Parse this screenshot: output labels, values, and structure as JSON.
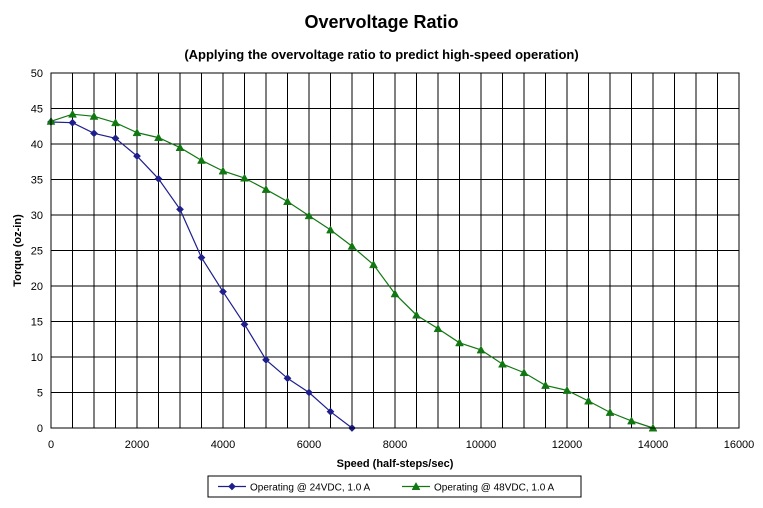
{
  "chart_data": {
    "type": "line",
    "title": "Overvoltage Ratio",
    "subtitle": "(Applying the overvoltage ratio to predict high-speed operation)",
    "xlabel": "Speed (half-steps/sec)",
    "ylabel": "Torque (oz-in)",
    "xlim": [
      0,
      16000
    ],
    "ylim": [
      0,
      50
    ],
    "xticks": [
      0,
      2000,
      4000,
      6000,
      8000,
      10000,
      12000,
      14000,
      16000
    ],
    "yticks": [
      0,
      5,
      10,
      15,
      20,
      25,
      30,
      35,
      40,
      45,
      50
    ],
    "grid": true,
    "legend_position": "bottom",
    "series": [
      {
        "name": "Operating @ 24VDC, 1.0 A",
        "color": "#1f1f8c",
        "marker": "diamond",
        "x": [
          0,
          500,
          1000,
          1500,
          2000,
          2500,
          3000,
          3500,
          4000,
          4500,
          5000,
          5500,
          6000,
          6500,
          7000
        ],
        "y": [
          43.1,
          43.0,
          41.5,
          40.8,
          38.3,
          35.1,
          30.8,
          24.0,
          19.2,
          14.6,
          9.6,
          7.0,
          5.0,
          2.3,
          0
        ]
      },
      {
        "name": "Operating @ 48VDC, 1.0 A",
        "color": "#117711",
        "marker": "triangle",
        "x": [
          0,
          500,
          1000,
          1500,
          2000,
          2500,
          3000,
          3500,
          4000,
          4500,
          5000,
          5500,
          6000,
          6500,
          7000,
          7500,
          8000,
          8500,
          9000,
          9500,
          10000,
          10500,
          11000,
          11500,
          12000,
          12500,
          13000,
          13500,
          14000
        ],
        "y": [
          43.2,
          44.2,
          43.9,
          43.0,
          41.6,
          40.9,
          39.5,
          37.7,
          36.2,
          35.2,
          33.6,
          31.9,
          29.9,
          27.9,
          25.6,
          23.0,
          18.9,
          15.9,
          14.0,
          12.0,
          11.0,
          9.0,
          7.8,
          6.0,
          5.3,
          3.8,
          2.2,
          1.0,
          0
        ]
      }
    ]
  }
}
